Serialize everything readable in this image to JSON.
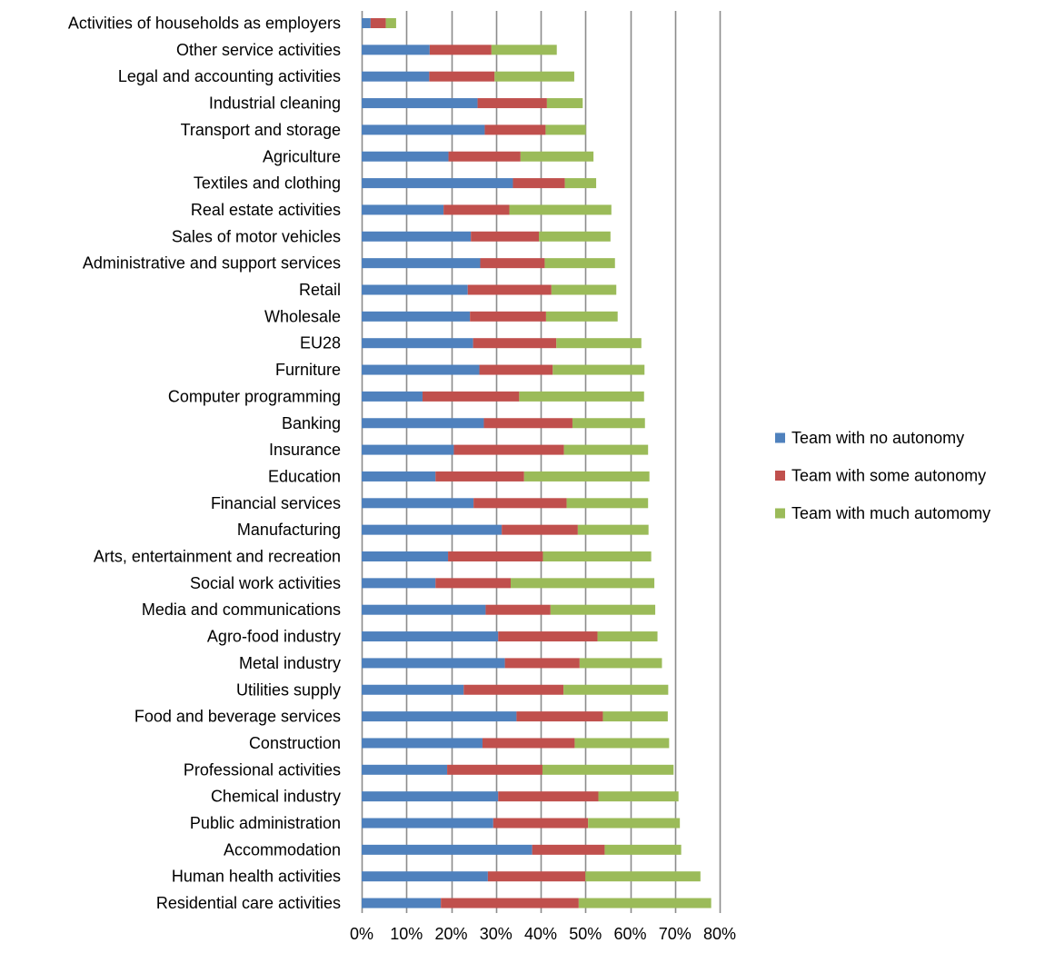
{
  "chart_data": {
    "type": "bar",
    "orientation": "horizontal",
    "stacked": true,
    "title": "",
    "xlabel": "",
    "ylabel": "",
    "xlim": [
      0,
      80
    ],
    "x_ticks": [
      "0%",
      "10%",
      "20%",
      "30%",
      "40%",
      "50%",
      "60%",
      "70%",
      "80%"
    ],
    "grid": "vertical",
    "legend_position": "right",
    "categories": [
      "Activities of households as employers",
      "Other service activities",
      "Legal and accounting activities",
      "Industrial cleaning",
      "Transport and storage",
      "Agriculture",
      "Textiles and clothing",
      "Real estate activities",
      "Sales of motor vehicles",
      "Administrative and support services",
      "Retail",
      "Wholesale",
      "EU28",
      "Furniture",
      "Computer programming",
      "Banking",
      "Insurance",
      "Education",
      "Financial services",
      "Manufacturing",
      "Arts, entertainment and recreation",
      "Social work activities",
      "Media and communications",
      "Agro-food industry",
      "Metal industry",
      "Utilities supply",
      "Food and beverage services",
      "Construction",
      "Professional activities",
      "Chemical industry",
      "Public administration",
      "Accommodation",
      "Human health activities",
      "Residential care activities"
    ],
    "series": [
      {
        "name": "Team with no autonomy",
        "color": "#4F81BD",
        "values": [
          2.0,
          15.2,
          15.1,
          25.9,
          27.5,
          19.4,
          33.8,
          18.3,
          24.4,
          26.5,
          23.7,
          24.2,
          24.9,
          26.3,
          13.6,
          27.3,
          20.6,
          16.5,
          25.0,
          31.3,
          19.3,
          16.5,
          27.7,
          30.5,
          32.0,
          22.8,
          34.6,
          27.0,
          19.1,
          30.5,
          29.4,
          38.1,
          28.2,
          17.7
        ]
      },
      {
        "name": "Team with some autonomy",
        "color": "#C0504D",
        "values": [
          3.4,
          13.8,
          14.6,
          15.5,
          13.6,
          16.1,
          11.6,
          14.7,
          15.2,
          14.4,
          18.7,
          17.0,
          18.6,
          16.4,
          21.6,
          19.8,
          24.6,
          19.8,
          20.8,
          17.0,
          21.2,
          16.8,
          14.5,
          22.2,
          16.7,
          22.3,
          19.3,
          20.6,
          21.3,
          22.4,
          21.2,
          16.2,
          21.8,
          30.8
        ]
      },
      {
        "name": "Team with much automomy",
        "color": "#9BBB59",
        "values": [
          2.3,
          14.6,
          17.8,
          8.0,
          9.0,
          16.3,
          7.0,
          22.8,
          16.0,
          15.7,
          14.5,
          16.0,
          19.0,
          20.5,
          27.9,
          16.2,
          18.8,
          28.0,
          18.2,
          15.8,
          24.2,
          32.1,
          23.4,
          13.4,
          18.4,
          23.4,
          14.5,
          21.1,
          29.3,
          17.9,
          20.5,
          17.1,
          25.7,
          29.6
        ]
      }
    ]
  }
}
